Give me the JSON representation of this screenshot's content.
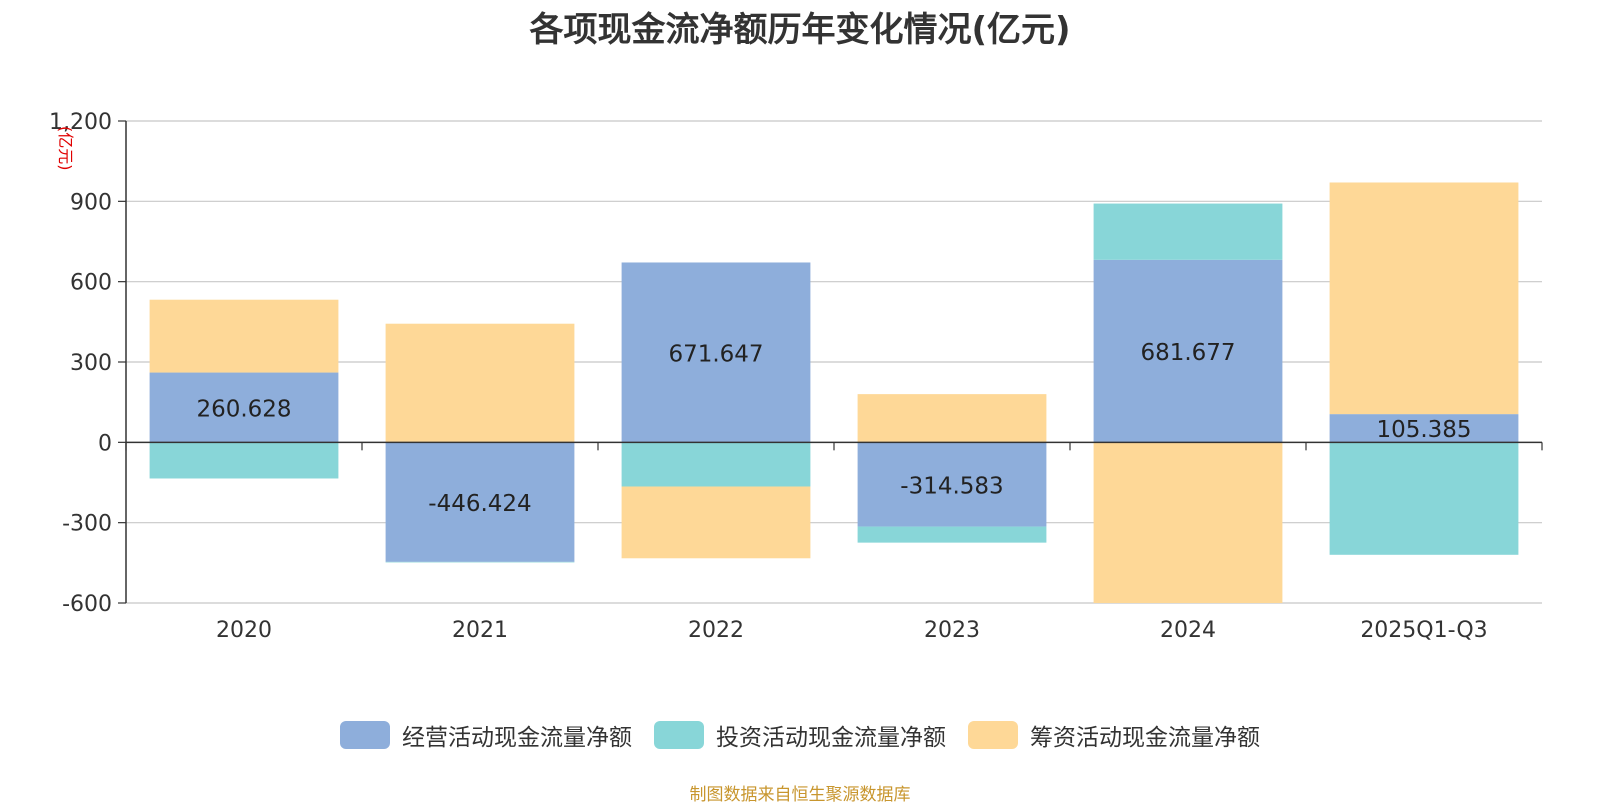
{
  "chart_data": {
    "type": "bar",
    "stacked": true,
    "title": "各项现金流净额历年变化情况(亿元)",
    "unit_label": "(亿元)",
    "categories": [
      "2020",
      "2021",
      "2022",
      "2023",
      "2024",
      "2025Q1-Q3"
    ],
    "ylim": [
      -600,
      1200
    ],
    "yticks": [
      -600,
      -300,
      0,
      300,
      600,
      900,
      1200
    ],
    "ytick_labels": [
      "-600",
      "-300",
      "0",
      "300",
      "600",
      "900",
      "1,200"
    ],
    "grid": true,
    "legend_position": "bottom",
    "series": [
      {
        "name": "经营活动现金流量净额",
        "color": "#8eaedb",
        "values": [
          260.628,
          -446.424,
          671.647,
          -314.583,
          681.677,
          105.385
        ],
        "labels": [
          "260.628",
          "-446.424",
          "671.647",
          "-314.583",
          "681.677",
          "105.385"
        ]
      },
      {
        "name": "投资活动现金流量净额",
        "color": "#88d6d8",
        "values": [
          -135,
          -2,
          -165,
          -60,
          210,
          -420
        ]
      },
      {
        "name": "筹资活动现金流量净额",
        "color": "#fed897",
        "values": [
          272,
          443,
          -268,
          180,
          -600,
          865
        ]
      }
    ]
  },
  "source_note": "制图数据来自恒生聚源数据库"
}
